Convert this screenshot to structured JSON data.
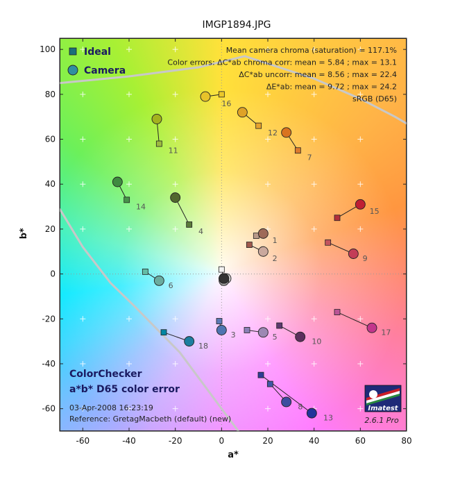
{
  "chart_data": {
    "type": "scatter",
    "title": "IMGP1894.JPG",
    "xlabel": "a*",
    "ylabel": "b*",
    "xlim": [
      -70,
      80
    ],
    "ylim": [
      -70,
      105
    ],
    "xticks": [
      -60,
      -40,
      -20,
      0,
      20,
      40,
      60,
      80
    ],
    "yticks": [
      -60,
      -40,
      -20,
      0,
      20,
      40,
      60,
      80,
      100
    ],
    "xticklabels": [
      "-60",
      "-40",
      "-20",
      "0",
      "20",
      "40",
      "60",
      "80"
    ],
    "yticklabels": [
      "-60",
      "-40",
      "-20",
      "0",
      "20",
      "40",
      "60",
      "80",
      "100"
    ],
    "legend": {
      "placement": "top-left",
      "entries": [
        "Ideal",
        "Camera"
      ]
    },
    "series": [
      {
        "name": "Ideal",
        "points": [
          {
            "id": "1",
            "x": 15,
            "y": 17,
            "color": "#b99a8a"
          },
          {
            "id": "2",
            "x": 12,
            "y": 13,
            "color": "#a0594d"
          },
          {
            "id": "3",
            "x": -1,
            "y": -21,
            "color": "#5d7ab6"
          },
          {
            "id": "4",
            "x": -14,
            "y": 22,
            "color": "#5b7a3b"
          },
          {
            "id": "5",
            "x": 11,
            "y": -25,
            "color": "#8a80b6"
          },
          {
            "id": "6",
            "x": -33,
            "y": 1,
            "color": "#64bda6"
          },
          {
            "id": "7",
            "x": 33,
            "y": 55,
            "color": "#db7a2e"
          },
          {
            "id": "8",
            "x": 21,
            "y": -49,
            "color": "#3f56a5"
          },
          {
            "id": "9",
            "x": 46,
            "y": 14,
            "color": "#c2545e"
          },
          {
            "id": "10",
            "x": 25,
            "y": -23,
            "color": "#5b3a6e"
          },
          {
            "id": "11",
            "x": -27,
            "y": 58,
            "color": "#9dba40"
          },
          {
            "id": "12",
            "x": 16,
            "y": 66,
            "color": "#e6a22e"
          },
          {
            "id": "13",
            "x": 17,
            "y": -45,
            "color": "#2f3c96"
          },
          {
            "id": "14",
            "x": -41,
            "y": 33,
            "color": "#47944a"
          },
          {
            "id": "15",
            "x": 50,
            "y": 25,
            "color": "#b3303c"
          },
          {
            "id": "16",
            "x": 0,
            "y": 80,
            "color": "#eac72a"
          },
          {
            "id": "17",
            "x": 50,
            "y": -17,
            "color": "#bb5496"
          },
          {
            "id": "18",
            "x": -25,
            "y": -26,
            "color": "#0086a3"
          },
          {
            "id": "19",
            "x": 0,
            "y": 2,
            "color": "#f2f2f2"
          }
        ]
      },
      {
        "name": "Camera",
        "points": [
          {
            "id": "1",
            "x": 18,
            "y": 18,
            "color": "#9e6a58"
          },
          {
            "id": "2",
            "x": 18,
            "y": 10,
            "color": "#c9a89d"
          },
          {
            "id": "3",
            "x": 0,
            "y": -25,
            "color": "#4f74b1"
          },
          {
            "id": "4",
            "x": -20,
            "y": 34,
            "color": "#51682e"
          },
          {
            "id": "5",
            "x": 18,
            "y": -26,
            "color": "#9c88b3"
          },
          {
            "id": "6",
            "x": -27,
            "y": -3,
            "color": "#6aab9f"
          },
          {
            "id": "7",
            "x": 28,
            "y": 63,
            "color": "#d9731f"
          },
          {
            "id": "8",
            "x": 28,
            "y": -57,
            "color": "#3d4da0"
          },
          {
            "id": "9",
            "x": 57,
            "y": 9,
            "color": "#c33d57"
          },
          {
            "id": "10",
            "x": 34,
            "y": -28,
            "color": "#5b2f5d"
          },
          {
            "id": "11",
            "x": -28,
            "y": 69,
            "color": "#a3b31e"
          },
          {
            "id": "12",
            "x": 9,
            "y": 72,
            "color": "#dfa227"
          },
          {
            "id": "13",
            "x": 39,
            "y": -62,
            "color": "#22349b"
          },
          {
            "id": "14",
            "x": -45,
            "y": 41,
            "color": "#3f8b40"
          },
          {
            "id": "15",
            "x": 60,
            "y": 31,
            "color": "#bf1f33"
          },
          {
            "id": "16",
            "x": -7,
            "y": 79,
            "color": "#e7c32a"
          },
          {
            "id": "17",
            "x": 65,
            "y": -24,
            "color": "#c2368c"
          },
          {
            "id": "18",
            "x": -14,
            "y": -30,
            "color": "#1c7ea0"
          },
          {
            "id": "19",
            "x": 1,
            "y": -2,
            "color": "#f2f2f2"
          },
          {
            "id": "20",
            "x": 2,
            "y": -2,
            "color": "#cacaca"
          },
          {
            "id": "21",
            "x": 1,
            "y": -3,
            "color": "#9f9f9f"
          },
          {
            "id": "22",
            "x": 1,
            "y": -2,
            "color": "#7a7a7a"
          },
          {
            "id": "23",
            "x": 1,
            "y": -2,
            "color": "#555555"
          },
          {
            "id": "24",
            "x": 1,
            "y": -2,
            "color": "#333333"
          }
        ]
      }
    ],
    "point_labels": [
      {
        "text": "1",
        "x": 22,
        "y": 15
      },
      {
        "text": "2",
        "x": 22,
        "y": 7
      },
      {
        "text": "3",
        "x": 4,
        "y": -27
      },
      {
        "text": "4",
        "x": -10,
        "y": 19
      },
      {
        "text": "5",
        "x": 22,
        "y": -28
      },
      {
        "text": "6",
        "x": -23,
        "y": -5
      },
      {
        "text": "7",
        "x": 37,
        "y": 52
      },
      {
        "text": "8",
        "x": 33,
        "y": -59
      },
      {
        "text": "9",
        "x": 61,
        "y": 7
      },
      {
        "text": "10",
        "x": 39,
        "y": -30
      },
      {
        "text": "11",
        "x": -23,
        "y": 55
      },
      {
        "text": "12",
        "x": 20,
        "y": 63
      },
      {
        "text": "13",
        "x": 44,
        "y": -64
      },
      {
        "text": "14",
        "x": -37,
        "y": 30
      },
      {
        "text": "15",
        "x": 64,
        "y": 28
      },
      {
        "text": "16",
        "x": 0,
        "y": 76
      },
      {
        "text": "17",
        "x": 69,
        "y": -26
      },
      {
        "text": "18",
        "x": -10,
        "y": -32
      }
    ],
    "gamut_boundary": {
      "label": "sRGB (D65)",
      "segments": [
        [
          [
            -70,
            85
          ],
          [
            -40,
            88
          ],
          [
            -10,
            92
          ],
          [
            10,
            97
          ],
          [
            40,
            87
          ],
          [
            60,
            78
          ],
          [
            75,
            70
          ],
          [
            80,
            67
          ]
        ],
        [
          [
            -70,
            29
          ],
          [
            -60,
            12
          ],
          [
            -48,
            -4
          ],
          [
            -38,
            -14
          ],
          [
            -18,
            -35
          ],
          [
            0,
            -60
          ],
          [
            8,
            -71
          ]
        ]
      ]
    },
    "annotations": {
      "top_right": [
        "Mean camera chroma (saturation) = 117.1%",
        "Color errors: ΔC*ab chroma corr:  mean = 5.84 ;  max = 13.1",
        "ΔC*ab uncorr:  mean = 8.56 ;  max = 22.4",
        "ΔE*ab:  mean = 9.72 ;  max = 24.2",
        "sRGB (D65)"
      ],
      "bottom_left": [
        "ColorChecker",
        "a*b* D65 color error",
        "03-Apr-2008 16:23:19",
        "Reference:  GretagMacbeth (default) (new)"
      ],
      "logo_text": "Imatest",
      "version": "2.6.1  Pro"
    },
    "colors": {
      "frame": "#222222",
      "gridline": "#999999",
      "grid_cross": "#ffffff",
      "label_text": "#555555",
      "gamut_line": "#c8c8c8",
      "legend_square": "#1b6f7b",
      "legend_circle": "#2f8fa0",
      "logo_blue": "#1e2a78",
      "logo_red": "#cc1f26",
      "logo_green": "#2a8a3e"
    }
  }
}
